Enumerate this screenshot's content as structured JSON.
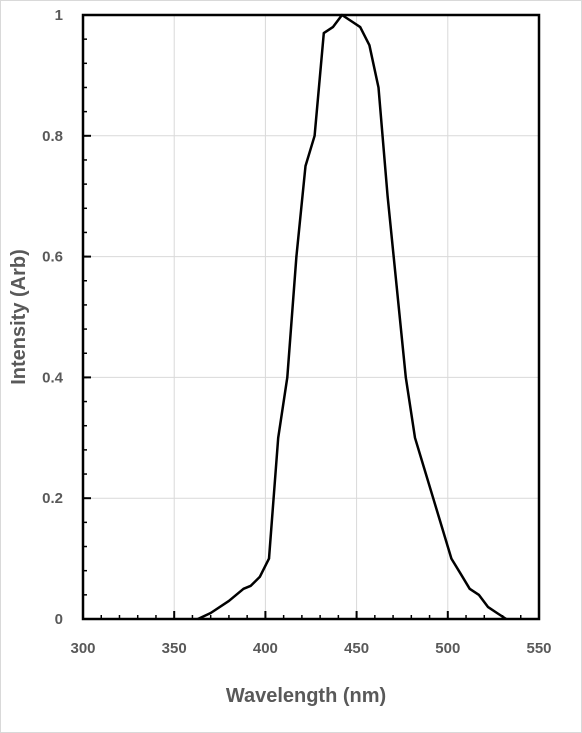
{
  "chart_data": {
    "type": "line",
    "title": "",
    "xlabel": "Wavelength (nm)",
    "ylabel": "Intensity (Arb)",
    "xlim": [
      300,
      550
    ],
    "ylim": [
      0,
      1
    ],
    "xticks": [
      300,
      350,
      400,
      450,
      500,
      550
    ],
    "yticks": [
      0,
      0.2,
      0.4,
      0.6,
      0.8,
      1
    ],
    "x_tick_labels": [
      "300",
      "350",
      "400",
      "450",
      "500",
      "550"
    ],
    "y_tick_labels": [
      "0",
      "0.2",
      "0.4",
      "0.6",
      "0.8",
      "1"
    ],
    "grid": true,
    "legend": "none",
    "series": [
      {
        "color": "#000000",
        "x": [
          363,
          370,
          380,
          388,
          392,
          397,
          402,
          407,
          412,
          417,
          422,
          427,
          432,
          437,
          442,
          447,
          452,
          457,
          462,
          467,
          472,
          477,
          482,
          487,
          492,
          497,
          502,
          507,
          512,
          517,
          522,
          527,
          532
        ],
        "y": [
          0,
          0.01,
          0.03,
          0.05,
          0.055,
          0.07,
          0.1,
          0.3,
          0.4,
          0.6,
          0.75,
          0.8,
          0.97,
          0.98,
          1.0,
          0.99,
          0.98,
          0.95,
          0.88,
          0.7,
          0.55,
          0.4,
          0.3,
          0.25,
          0.2,
          0.15,
          0.1,
          0.075,
          0.05,
          0.04,
          0.02,
          0.01,
          0
        ]
      }
    ]
  }
}
